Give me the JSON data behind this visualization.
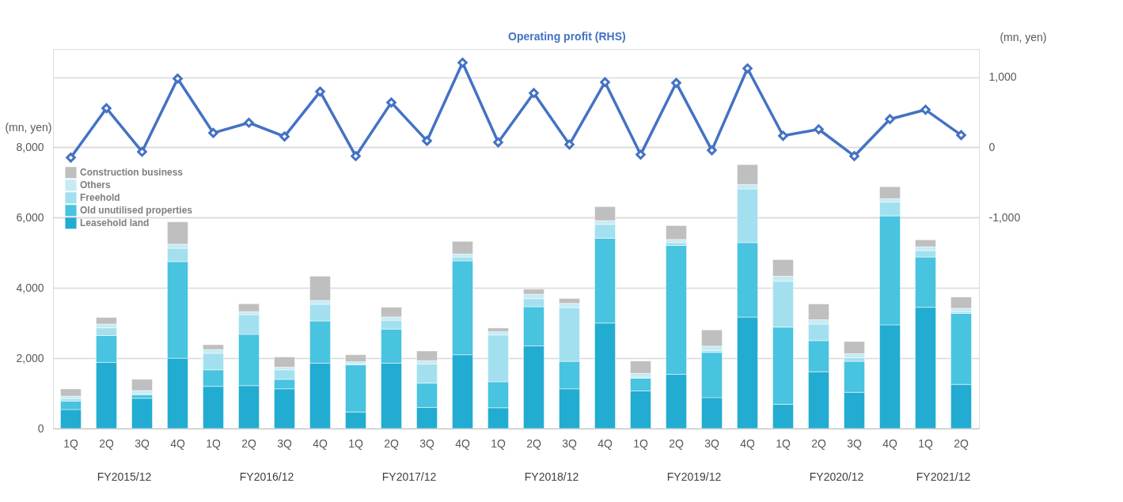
{
  "chart_data": {
    "type": "bar",
    "stacked": true,
    "categories": [
      "1Q",
      "2Q",
      "3Q",
      "4Q",
      "1Q",
      "2Q",
      "3Q",
      "4Q",
      "1Q",
      "2Q",
      "3Q",
      "4Q",
      "1Q",
      "2Q",
      "3Q",
      "4Q",
      "1Q",
      "2Q",
      "3Q",
      "4Q",
      "1Q",
      "2Q",
      "3Q",
      "4Q",
      "1Q",
      "2Q"
    ],
    "ylabel": "(mn, yen)",
    "y2label": "(mn, yen)",
    "ylim": [
      0,
      10800
    ],
    "yticks": [
      0,
      {
        "value": 2000,
        "label": "2,000"
      },
      {
        "value": 4000,
        "label": "4,000"
      },
      {
        "value": 6000,
        "label": "6,000"
      },
      {
        "value": 8000,
        "label": "8,000"
      }
    ],
    "y2lim": [
      -4000,
      1400
    ],
    "y2ticks": [
      {
        "value": -1000,
        "label": "-1,000"
      },
      0,
      {
        "value": 1000,
        "label": "1,000"
      }
    ],
    "grid": "y",
    "legend": "top left",
    "marker": "diamond",
    "annotations": [
      "FY2015/12",
      "FY2016/12",
      "FY2017/12",
      "FY2018/12",
      "FY2019/12",
      "FY2020/12",
      "FY2021/12"
    ],
    "series": [
      {
        "name": "Leasehold land",
        "color": "#22acd1",
        "values": [
          540,
          1880,
          860,
          2000,
          1200,
          1220,
          1130,
          1860,
          470,
          1860,
          600,
          2100,
          590,
          2350,
          1130,
          3000,
          1070,
          1540,
          880,
          3170,
          690,
          1615,
          1030,
          2950,
          3450,
          1255
        ]
      },
      {
        "name": "Old unutilised properties",
        "color": "#48c3e0",
        "values": [
          240,
          765,
          100,
          2750,
          470,
          1460,
          270,
          1200,
          1340,
          970,
          690,
          2670,
          740,
          1115,
          780,
          2415,
          360,
          3670,
          1285,
          2120,
          2195,
          885,
          880,
          3100,
          1430,
          2020
        ]
      },
      {
        "name": "Freehold",
        "color": "#a3e0ef",
        "values": [
          70,
          220,
          30,
          380,
          470,
          560,
          270,
          475,
          30,
          250,
          545,
          110,
          1330,
          230,
          1530,
          395,
          30,
          80,
          55,
          1530,
          1305,
          470,
          105,
          395,
          185,
          50
        ]
      },
      {
        "name": "Others",
        "color": "#c6ebf5",
        "values": [
          70,
          105,
          90,
          115,
          105,
          85,
          75,
          110,
          60,
          95,
          95,
          85,
          95,
          125,
          120,
          105,
          110,
          90,
          125,
          125,
          145,
          125,
          115,
          95,
          105,
          95
        ]
      },
      {
        "name": "Construction business",
        "color": "#bfbfbf",
        "values": [
          205,
          190,
          320,
          635,
          140,
          225,
          290,
          690,
          200,
          275,
          275,
          360,
          105,
          145,
          140,
          400,
          350,
          395,
          460,
          565,
          470,
          450,
          345,
          340,
          200,
          320
        ]
      },
      {
        "name": "Operating profit (RHS)",
        "color": "#4472c4",
        "type": "line",
        "axis": "y2",
        "line_style": "solid",
        "values": [
          -145,
          557,
          -62,
          979,
          206,
          351,
          155,
          794,
          -124,
          639,
          93,
          1206,
          72,
          773,
          41,
          928,
          -103,
          918,
          -41,
          1124,
          165,
          258,
          -124,
          402,
          536,
          175
        ]
      }
    ]
  }
}
